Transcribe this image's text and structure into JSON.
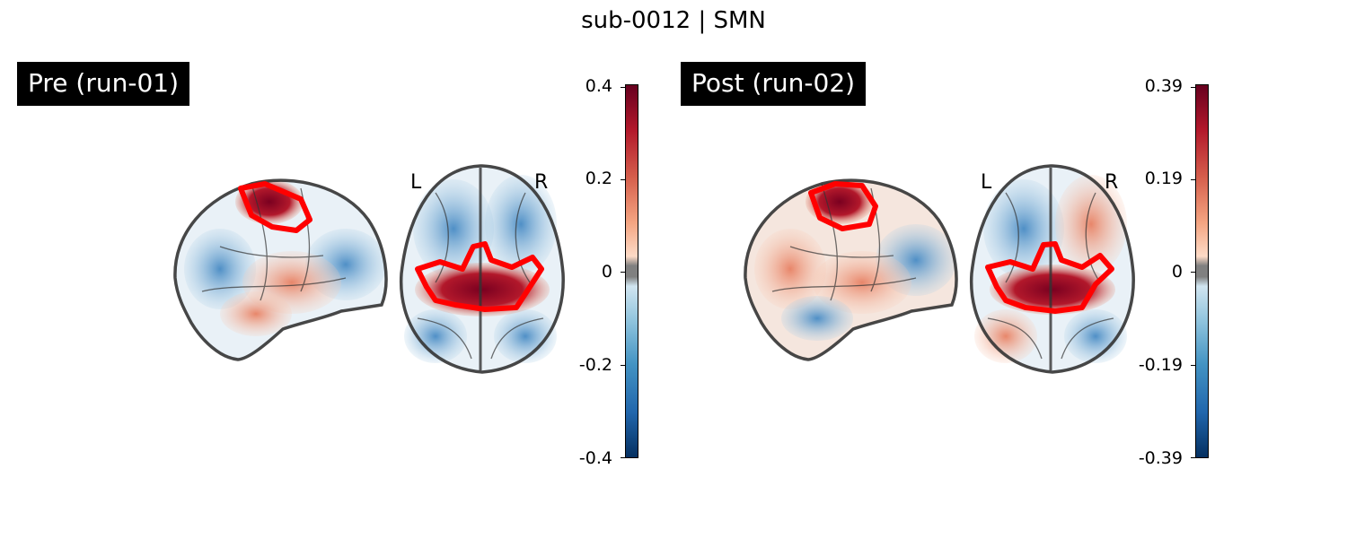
{
  "title": "sub-0012 | SMN",
  "panels": [
    {
      "label": "Pre (run-01)",
      "hemi_left": "L",
      "hemi_right": "R",
      "colorbar": {
        "ticks": [
          "0.4",
          "0.2",
          "0",
          "-0.2",
          "-0.4"
        ],
        "vmin": -0.4,
        "vmax": 0.4
      }
    },
    {
      "label": "Post (run-02)",
      "hemi_left": "L",
      "hemi_right": "R",
      "colorbar": {
        "ticks": [
          "0.39",
          "0.19",
          "0",
          "-0.19",
          "-0.39"
        ],
        "vmin": -0.39,
        "vmax": 0.39
      }
    }
  ],
  "colors": {
    "outline": "#333333",
    "roi": "#ff0000",
    "positive": "#b2182b",
    "negative": "#2166ac"
  },
  "colormap": "RdBu_r"
}
